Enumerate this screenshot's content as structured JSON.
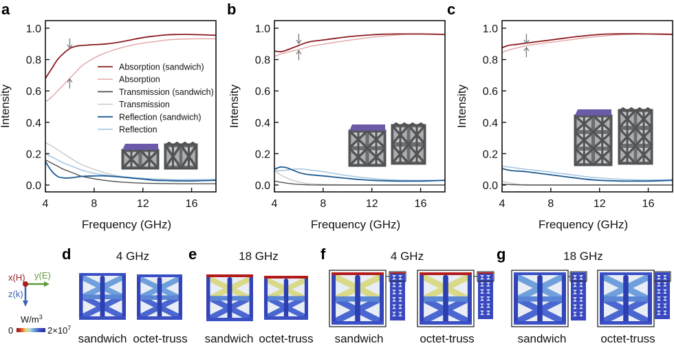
{
  "figure": {
    "panel_letters": [
      "a",
      "b",
      "c",
      "d",
      "e",
      "f",
      "g"
    ]
  },
  "legend": {
    "entries": [
      {
        "label": "Absorption (sandwich)",
        "color": "#8b1a1f"
      },
      {
        "label": "Absorption",
        "color": "#e3a3a3"
      },
      {
        "label": "Transmission (sandwich)",
        "color": "#505050"
      },
      {
        "label": "Transmission",
        "color": "#c8c8c8"
      },
      {
        "label": "Reflection (sandwich)",
        "color": "#1c5a92"
      },
      {
        "label": "Reflection",
        "color": "#9cbfe0"
      }
    ]
  },
  "chart_data": [
    {
      "panel": "a",
      "type": "line",
      "title": "",
      "xlabel": "Frequency (GHz)",
      "ylabel": "Intensity",
      "xlim": [
        4,
        18
      ],
      "ylim": [
        -0.05,
        1.05
      ],
      "xticks": [
        4,
        8,
        12,
        16
      ],
      "yticks": [
        0.0,
        0.2,
        0.4,
        0.6,
        0.8,
        1.0
      ],
      "ytick_labels": [
        "0.0",
        "0.2",
        "0.4",
        "0.6",
        "0.8",
        "1.0"
      ],
      "legend_position": "center-right",
      "annotations": [
        {
          "type": "arrow-down",
          "x": 6,
          "y": 0.93
        },
        {
          "type": "arrow-up",
          "x": 6,
          "y": 0.62
        }
      ],
      "x": [
        4,
        4.5,
        5,
        5.5,
        6,
        6.5,
        7,
        8,
        9,
        10,
        11,
        12,
        13,
        14,
        15,
        16,
        17,
        18
      ],
      "series": [
        {
          "name": "Absorption (sandwich)",
          "values": [
            0.68,
            0.74,
            0.8,
            0.84,
            0.87,
            0.885,
            0.89,
            0.895,
            0.9,
            0.91,
            0.925,
            0.94,
            0.95,
            0.958,
            0.96,
            0.96,
            0.958,
            0.955
          ]
        },
        {
          "name": "Absorption",
          "values": [
            0.53,
            0.56,
            0.6,
            0.64,
            0.68,
            0.72,
            0.76,
            0.81,
            0.845,
            0.87,
            0.89,
            0.905,
            0.915,
            0.925,
            0.93,
            0.932,
            0.933,
            0.932
          ]
        },
        {
          "name": "Transmission (sandwich)",
          "values": [
            0.16,
            0.14,
            0.12,
            0.1,
            0.085,
            0.07,
            0.055,
            0.04,
            0.028,
            0.02,
            0.015,
            0.012,
            0.01,
            0.009,
            0.008,
            0.008,
            0.008,
            0.008
          ]
        },
        {
          "name": "Transmission",
          "values": [
            0.27,
            0.25,
            0.225,
            0.2,
            0.175,
            0.15,
            0.13,
            0.1,
            0.075,
            0.058,
            0.048,
            0.042,
            0.038,
            0.035,
            0.033,
            0.032,
            0.032,
            0.033
          ]
        },
        {
          "name": "Reflection (sandwich)",
          "values": [
            0.15,
            0.09,
            0.055,
            0.045,
            0.045,
            0.05,
            0.055,
            0.058,
            0.058,
            0.052,
            0.045,
            0.038,
            0.03,
            0.028,
            0.026,
            0.026,
            0.028,
            0.03
          ]
        },
        {
          "name": "Reflection",
          "values": [
            0.2,
            0.18,
            0.16,
            0.14,
            0.125,
            0.11,
            0.095,
            0.075,
            0.062,
            0.055,
            0.048,
            0.042,
            0.038,
            0.036,
            0.034,
            0.034,
            0.034,
            0.035
          ]
        }
      ]
    },
    {
      "panel": "b",
      "type": "line",
      "title": "",
      "xlabel": "Frequency (GHz)",
      "ylabel": "Intensity",
      "xlim": [
        4,
        18
      ],
      "ylim": [
        -0.05,
        1.05
      ],
      "xticks": [
        4,
        8,
        12,
        16
      ],
      "yticks": [
        0.0,
        0.2,
        0.4,
        0.6,
        0.8,
        1.0
      ],
      "ytick_labels": [
        "0.0",
        "0.2",
        "0.4",
        "0.6",
        "0.8",
        "1.0"
      ],
      "annotations": [
        {
          "type": "arrow-down",
          "x": 6,
          "y": 0.96
        },
        {
          "type": "arrow-up",
          "x": 6,
          "y": 0.8
        }
      ],
      "x": [
        4,
        4.5,
        5,
        5.5,
        6,
        6.5,
        7,
        8,
        9,
        10,
        11,
        12,
        13,
        14,
        15,
        16,
        17,
        18
      ],
      "series": [
        {
          "name": "Absorption (sandwich)",
          "values": [
            0.855,
            0.85,
            0.86,
            0.875,
            0.89,
            0.905,
            0.915,
            0.925,
            0.935,
            0.945,
            0.952,
            0.958,
            0.962,
            0.963,
            0.963,
            0.963,
            0.962,
            0.96
          ]
        },
        {
          "name": "Absorption",
          "values": [
            0.82,
            0.835,
            0.845,
            0.855,
            0.865,
            0.875,
            0.885,
            0.898,
            0.91,
            0.922,
            0.932,
            0.942,
            0.95,
            0.957,
            0.962,
            0.963,
            0.962,
            0.96
          ]
        },
        {
          "name": "Transmission (sandwich)",
          "values": [
            0.025,
            0.018,
            0.012,
            0.007,
            0.004,
            0.002,
            0.001,
            0.0,
            0.0,
            0.0,
            0.0,
            0.0,
            0.0,
            0.0,
            0.0,
            0.0,
            0.0,
            0.0
          ]
        },
        {
          "name": "Transmission",
          "values": [
            0.09,
            0.065,
            0.045,
            0.03,
            0.02,
            0.012,
            0.008,
            0.004,
            0.002,
            0.001,
            0.0,
            0.0,
            0.0,
            0.0,
            0.0,
            0.0,
            0.0,
            0.0
          ]
        },
        {
          "name": "Reflection (sandwich)",
          "values": [
            0.1,
            0.115,
            0.11,
            0.095,
            0.08,
            0.07,
            0.065,
            0.058,
            0.05,
            0.042,
            0.035,
            0.03,
            0.027,
            0.025,
            0.025,
            0.025,
            0.027,
            0.03
          ]
        },
        {
          "name": "Reflection",
          "values": [
            0.09,
            0.092,
            0.095,
            0.1,
            0.102,
            0.1,
            0.095,
            0.085,
            0.072,
            0.06,
            0.05,
            0.042,
            0.036,
            0.032,
            0.03,
            0.03,
            0.03,
            0.032
          ]
        }
      ]
    },
    {
      "panel": "c",
      "type": "line",
      "title": "",
      "xlabel": "Frequency (GHz)",
      "ylabel": "Intensity",
      "xlim": [
        4,
        18
      ],
      "ylim": [
        -0.05,
        1.05
      ],
      "xticks": [
        4,
        8,
        12,
        16
      ],
      "yticks": [
        0.0,
        0.2,
        0.4,
        0.6,
        0.8,
        1.0
      ],
      "ytick_labels": [
        "0.0",
        "0.2",
        "0.4",
        "0.6",
        "0.8",
        "1.0"
      ],
      "annotations": [
        {
          "type": "arrow-down",
          "x": 6,
          "y": 0.96
        },
        {
          "type": "arrow-up",
          "x": 6,
          "y": 0.82
        }
      ],
      "x": [
        4,
        4.5,
        5,
        5.5,
        6,
        6.5,
        7,
        8,
        9,
        10,
        11,
        12,
        13,
        14,
        15,
        16,
        17,
        18
      ],
      "series": [
        {
          "name": "Absorption (sandwich)",
          "values": [
            0.875,
            0.89,
            0.895,
            0.9,
            0.905,
            0.91,
            0.915,
            0.925,
            0.935,
            0.945,
            0.953,
            0.96,
            0.963,
            0.964,
            0.964,
            0.963,
            0.962,
            0.96
          ]
        },
        {
          "name": "Absorption",
          "values": [
            0.845,
            0.86,
            0.87,
            0.88,
            0.888,
            0.895,
            0.9,
            0.91,
            0.92,
            0.93,
            0.94,
            0.948,
            0.955,
            0.96,
            0.963,
            0.964,
            0.964,
            0.964
          ]
        },
        {
          "name": "Transmission (sandwich)",
          "values": [
            0.005,
            0.003,
            0.002,
            0.001,
            0.0,
            0.0,
            0.0,
            0.0,
            0.0,
            0.0,
            0.0,
            0.0,
            0.0,
            0.0,
            0.0,
            0.0,
            0.0,
            0.0
          ]
        },
        {
          "name": "Transmission",
          "values": [
            0.025,
            0.015,
            0.008,
            0.004,
            0.002,
            0.001,
            0.0,
            0.0,
            0.0,
            0.0,
            0.0,
            0.0,
            0.0,
            0.0,
            0.0,
            0.0,
            0.0,
            0.0
          ]
        },
        {
          "name": "Reflection (sandwich)",
          "values": [
            0.105,
            0.095,
            0.09,
            0.088,
            0.085,
            0.08,
            0.075,
            0.065,
            0.055,
            0.045,
            0.036,
            0.03,
            0.027,
            0.025,
            0.025,
            0.025,
            0.027,
            0.03
          ]
        },
        {
          "name": "Reflection",
          "values": [
            0.12,
            0.115,
            0.11,
            0.105,
            0.1,
            0.096,
            0.092,
            0.082,
            0.072,
            0.062,
            0.052,
            0.045,
            0.04,
            0.036,
            0.033,
            0.032,
            0.033,
            0.035
          ]
        }
      ]
    }
  ],
  "bottom": {
    "coord_axes": {
      "x_label": "x(H)",
      "y_label": "y(E)",
      "z_label": "z(k)"
    },
    "colorbar": {
      "unit": "W/m",
      "unit_sup": "3",
      "min_label": "0",
      "max_label": "2×10",
      "max_sup": "7"
    },
    "groups": [
      {
        "letter": "d",
        "freq": "4 GHz",
        "labels": [
          "sandwich",
          "octet-truss"
        ],
        "intensity": "low",
        "tall": false
      },
      {
        "letter": "e",
        "freq": "18 GHz",
        "labels": [
          "sandwich",
          "octet-truss"
        ],
        "intensity": "high",
        "tall": false
      },
      {
        "letter": "f",
        "freq": "4 GHz",
        "labels": [
          "sandwich",
          "octet-truss"
        ],
        "intensity": "high",
        "tall": true
      },
      {
        "letter": "g",
        "freq": "18 GHz",
        "labels": [
          "sandwich",
          "octet-truss"
        ],
        "intensity": "low",
        "tall": true
      }
    ]
  },
  "colors": {
    "sandwich_plate": "#6a5aa8",
    "lattice_gray": "#505254",
    "field_blue": "#3344b8",
    "field_hot": "#b31b1b"
  }
}
